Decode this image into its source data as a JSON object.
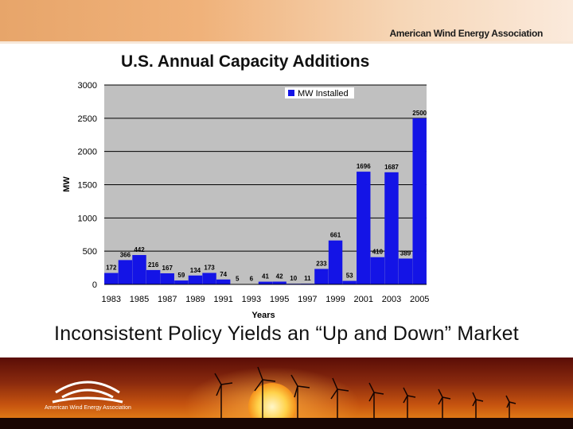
{
  "header": {
    "org_name": "American Wind Energy Association"
  },
  "footer": {
    "logo_text": "American Wind Energy Association"
  },
  "slide": {
    "subtitle": "Inconsistent Policy Yields an “Up and Down” Market"
  },
  "colors": {
    "bar": "#1414e6",
    "plot_bg": "#c0c0c0",
    "top_band": "#eea871"
  },
  "chart_data": {
    "type": "bar",
    "title": "U.S. Annual Capacity Additions",
    "xlabel": "Years",
    "ylabel": "MW",
    "legend": "MW Installed",
    "legend_position": "top-right",
    "ylim": [
      0,
      3000
    ],
    "yticks": [
      0,
      500,
      1000,
      1500,
      2000,
      2500,
      3000
    ],
    "grid": true,
    "categories": [
      "1983",
      "1984",
      "1985",
      "1986",
      "1987",
      "1988",
      "1989",
      "1990",
      "1991",
      "1992",
      "1993",
      "1994",
      "1995",
      "1996",
      "1997",
      "1998",
      "1999",
      "2000",
      "2001",
      "2002",
      "2003",
      "2004",
      "2005"
    ],
    "xtick_labels": [
      "1983",
      "1985",
      "1987",
      "1989",
      "1991",
      "1993",
      "1995",
      "1997",
      "1999",
      "2001",
      "2003",
      "2005"
    ],
    "values": [
      172,
      366,
      442,
      216,
      167,
      59,
      134,
      173,
      74,
      5,
      6,
      41,
      42,
      10,
      11,
      233,
      661,
      53,
      1696,
      410,
      1687,
      389,
      2500
    ]
  }
}
